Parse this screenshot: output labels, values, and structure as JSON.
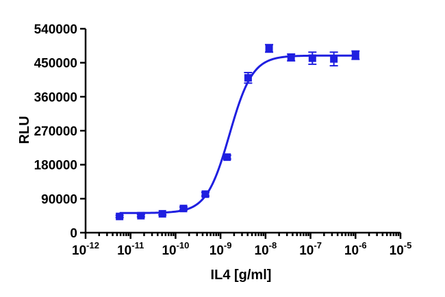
{
  "chart_data": {
    "type": "scatter",
    "title": "",
    "xlabel": "IL4 [g/ml]",
    "ylabel": "RLU",
    "x_scale": "log10",
    "xlim": [
      1e-12,
      1e-05
    ],
    "ylim": [
      0,
      540000
    ],
    "x_ticks": [
      {
        "base": "10",
        "exp": "-12",
        "value": 1e-12
      },
      {
        "base": "10",
        "exp": "-11",
        "value": 1e-11
      },
      {
        "base": "10",
        "exp": "-10",
        "value": 1e-10
      },
      {
        "base": "10",
        "exp": "-9",
        "value": 1e-09
      },
      {
        "base": "10",
        "exp": "-8",
        "value": 1e-08
      },
      {
        "base": "10",
        "exp": "-7",
        "value": 1e-07
      },
      {
        "base": "10",
        "exp": "-6",
        "value": 1e-06
      },
      {
        "base": "10",
        "exp": "-5",
        "value": 1e-05
      }
    ],
    "y_ticks": [
      {
        "label": "0",
        "value": 0
      },
      {
        "label": "90000",
        "value": 90000
      },
      {
        "label": "180000",
        "value": 180000
      },
      {
        "label": "270000",
        "value": 270000
      },
      {
        "label": "360000",
        "value": 360000
      },
      {
        "label": "450000",
        "value": 450000
      },
      {
        "label": "540000",
        "value": 540000
      }
    ],
    "grid": false,
    "legend": "none",
    "series": [
      {
        "color": "#1f1fe0",
        "marker": "square",
        "points": [
          {
            "x": 5.7e-12,
            "y": 43000,
            "err": 3000
          },
          {
            "x": 1.7e-11,
            "y": 45000,
            "err": 3000
          },
          {
            "x": 5.1e-11,
            "y": 50000,
            "err": 3000
          },
          {
            "x": 1.5e-10,
            "y": 64000,
            "err": 4000
          },
          {
            "x": 4.6e-10,
            "y": 102000,
            "err": 5000
          },
          {
            "x": 1.4e-09,
            "y": 200000,
            "err": 5000
          },
          {
            "x": 4.1e-09,
            "y": 410000,
            "err": 14000
          },
          {
            "x": 1.2e-08,
            "y": 488000,
            "err": 10000
          },
          {
            "x": 3.7e-08,
            "y": 464000,
            "err": 9000
          },
          {
            "x": 1.1e-07,
            "y": 462000,
            "err": 16000
          },
          {
            "x": 3.3e-07,
            "y": 460000,
            "err": 18000
          },
          {
            "x": 1e-06,
            "y": 470000,
            "err": 11000
          }
        ],
        "fit": {
          "model": "4PL",
          "bottom": 52000,
          "top": 469000,
          "log_ec50": -8.8,
          "hill": 1.7,
          "x_range": [
            5.7e-12,
            1e-06
          ]
        }
      }
    ]
  }
}
